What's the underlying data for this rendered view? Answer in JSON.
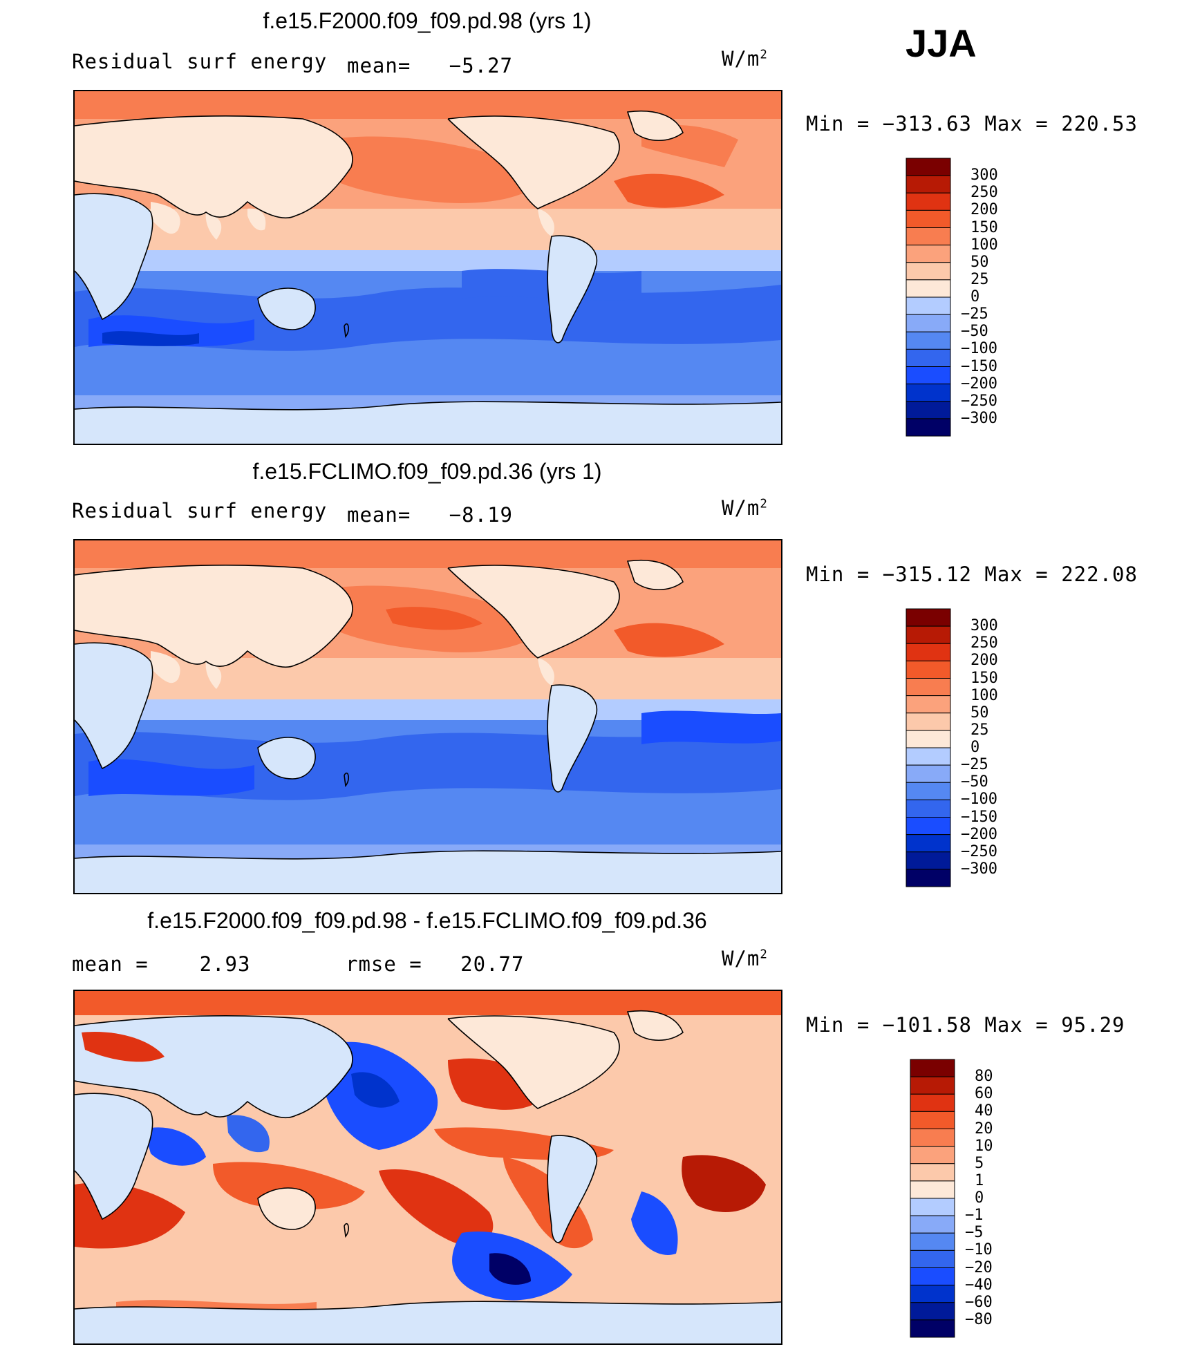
{
  "season": "JJA",
  "panels": [
    {
      "title": "f.e15.F2000.f09_f09.pd.98 (yrs 1)",
      "left_label": "Residual surf energy",
      "stat_label": "mean=",
      "stat_value": "−5.27",
      "units_base": "W/m",
      "units_exp": "2",
      "minmax": "Min = −313.63 Max = 220.53",
      "style": "absolute",
      "colorbar": [
        "300",
        "250",
        "200",
        "150",
        "100",
        "50",
        "25",
        "0",
        "−25",
        "−50",
        "−100",
        "−150",
        "−200",
        "−250",
        "−300"
      ]
    },
    {
      "title": "f.e15.FCLIMO.f09_f09.pd.36 (yrs 1)",
      "left_label": "Residual surf energy",
      "stat_label": "mean=",
      "stat_value": "−8.19",
      "units_base": "W/m",
      "units_exp": "2",
      "minmax": "Min = −315.12 Max = 222.08",
      "style": "absolute",
      "colorbar": [
        "300",
        "250",
        "200",
        "150",
        "100",
        "50",
        "25",
        "0",
        "−25",
        "−50",
        "−100",
        "−150",
        "−200",
        "−250",
        "−300"
      ]
    },
    {
      "title": "f.e15.F2000.f09_f09.pd.98 - f.e15.FCLIMO.f09_f09.pd.36",
      "left_label": "mean =    2.93",
      "stat_label": "rmse =",
      "stat_value": "20.77",
      "units_base": "W/m",
      "units_exp": "2",
      "minmax": "Min = −101.58 Max =  95.29",
      "style": "difference",
      "colorbar": [
        "80",
        "60",
        "40",
        "20",
        "10",
        "5",
        "1",
        "0",
        "−1",
        "−5",
        "−10",
        "−20",
        "−40",
        "−60",
        "−80"
      ]
    }
  ],
  "colors": [
    "#000066",
    "#001a99",
    "#0033cc",
    "#1a4dff",
    "#3366ee",
    "#5588f2",
    "#88aaf8",
    "#b3ccff",
    "#d6e6fb",
    "#fde8d8",
    "#fcc9ab",
    "#fba27c",
    "#f87d50",
    "#f25a2a",
    "#e03312",
    "#b71a05",
    "#7a0000"
  ],
  "chart_data": [
    {
      "type": "heatmap",
      "title": "f.e15.F2000.f09_f09.pd.98 (yrs 1)",
      "variable": "Residual surf energy",
      "units": "W/m2",
      "mean": -5.27,
      "min": -313.63,
      "max": 220.53,
      "levels": [
        -300,
        -250,
        -200,
        -150,
        -100,
        -50,
        -25,
        0,
        25,
        50,
        100,
        150,
        200,
        250,
        300
      ]
    },
    {
      "type": "heatmap",
      "title": "f.e15.FCLIMO.f09_f09.pd.36 (yrs 1)",
      "variable": "Residual surf energy",
      "units": "W/m2",
      "mean": -8.19,
      "min": -315.12,
      "max": 222.08,
      "levels": [
        -300,
        -250,
        -200,
        -150,
        -100,
        -50,
        -25,
        0,
        25,
        50,
        100,
        150,
        200,
        250,
        300
      ]
    },
    {
      "type": "heatmap",
      "title": "f.e15.F2000.f09_f09.pd.98 - f.e15.FCLIMO.f09_f09.pd.36",
      "units": "W/m2",
      "mean": 2.93,
      "rmse": 20.77,
      "min": -101.58,
      "max": 95.29,
      "levels": [
        -80,
        -60,
        -40,
        -20,
        -10,
        -5,
        -1,
        0,
        1,
        5,
        10,
        20,
        40,
        60,
        80
      ]
    }
  ]
}
